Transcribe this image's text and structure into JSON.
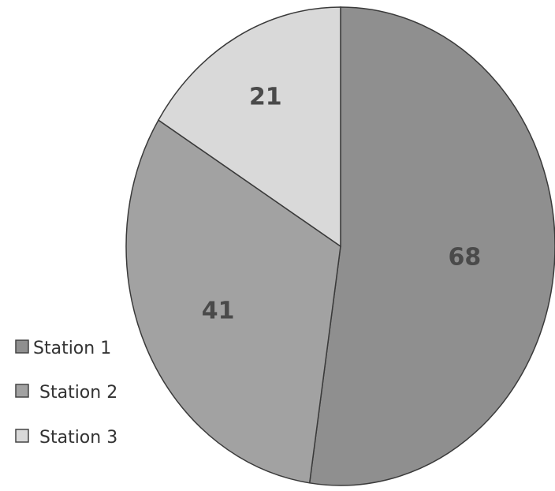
{
  "chart_data": {
    "type": "pie",
    "labels": [
      "Station 1",
      "Station 2",
      "Station 3"
    ],
    "values": [
      68,
      41,
      21
    ],
    "data_labels": [
      "68",
      "41",
      "21"
    ],
    "colors": [
      "#8f8f8f",
      "#a2a2a2",
      "#d9d9d9"
    ],
    "label_color": "#4a4a4a",
    "edge_color": "#3a3a3a",
    "legend_position": "left",
    "start_angle": "12 o'clock",
    "direction": "clockwise"
  }
}
